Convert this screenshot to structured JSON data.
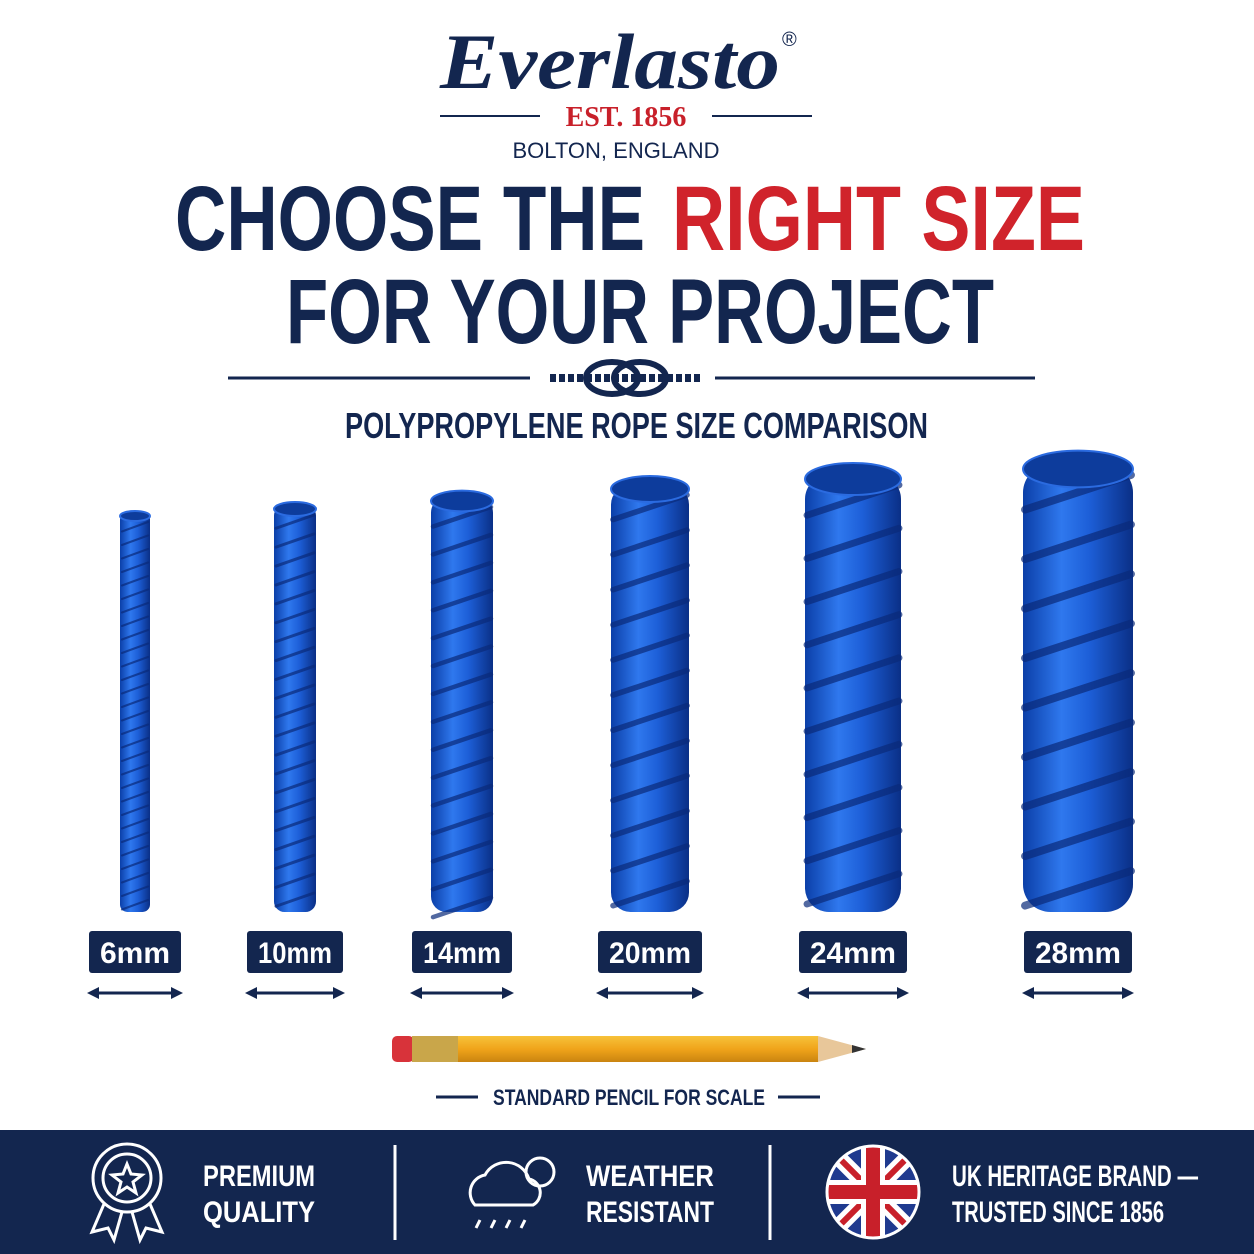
{
  "brand": {
    "name": "Everlasto",
    "registered": "®",
    "established": "EST. 1856",
    "location": "BOLTON, ENGLAND"
  },
  "headline": {
    "line1_start": "CHOOSE THE",
    "line1_highlight": "RIGHT SIZE",
    "line2": "FOR YOUR PROJECT"
  },
  "subtitle": "POLYPROPYLENE ROPE SIZE COMPARISON",
  "sizes": [
    "6mm",
    "10mm",
    "14mm",
    "20mm",
    "24mm",
    "28mm"
  ],
  "scale_note": "STANDARD PENCIL FOR SCALE",
  "features": [
    {
      "line1": "PREMIUM",
      "line2": "QUALITY"
    },
    {
      "line1": "WEATHER",
      "line2": "RESISTANT"
    },
    {
      "line1": "UK HERITAGE BRAND —",
      "line2": "TRUSTED SINCE 1856"
    }
  ]
}
